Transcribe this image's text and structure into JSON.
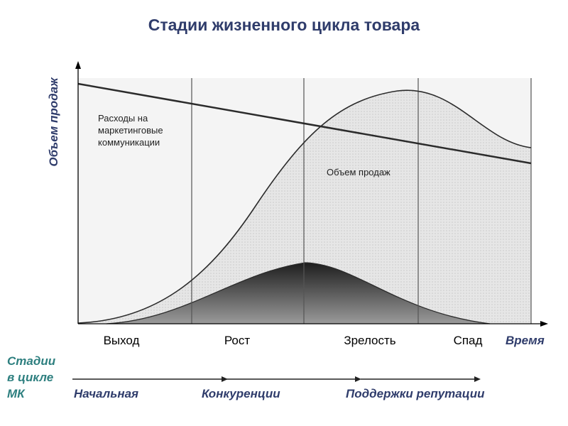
{
  "title": "Стадии жизненного цикла товара",
  "y_axis_label": "Объем продаж",
  "x_axis_label": "Время",
  "stages": [
    "Выход",
    "Рост",
    "Зрелость",
    "Спад"
  ],
  "annotations": {
    "marketing_costs": [
      "Расходы на",
      "маркетинговые",
      "коммуникации"
    ],
    "sales_volume": "Объем продаж"
  },
  "mk_cycle": {
    "label_lines": [
      "Стадии",
      "в цикле",
      "МК"
    ],
    "stages": [
      "Начальная",
      "Конкуренции",
      "Поддержки репутации"
    ]
  },
  "colors": {
    "title": "#2f3c6b",
    "mk_label": "#2d7f7f",
    "area_fill": "#e3e3e3",
    "curve": "#2b2b2b"
  }
}
